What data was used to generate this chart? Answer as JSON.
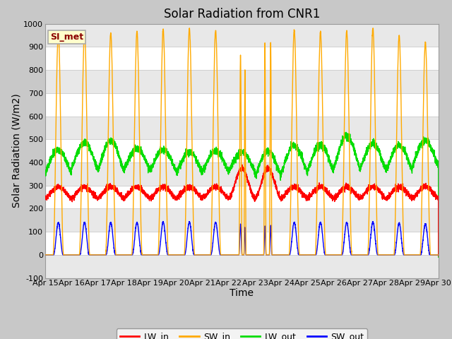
{
  "title": "Solar Radiation from CNR1",
  "xlabel": "Time",
  "ylabel": "Solar Radiation (W/m2)",
  "ylim": [
    -100,
    1000
  ],
  "xlim": [
    0,
    15
  ],
  "legend_label": "SI_met",
  "series": {
    "LW_in": {
      "color": "#ff0000",
      "label": "LW_in"
    },
    "SW_in": {
      "color": "#ffaa00",
      "label": "SW_in"
    },
    "LW_out": {
      "color": "#00dd00",
      "label": "LW_out"
    },
    "SW_out": {
      "color": "#0000ff",
      "label": "SW_out"
    }
  },
  "xtick_labels": [
    "Apr 15",
    "Apr 16",
    "Apr 17",
    "Apr 18",
    "Apr 19",
    "Apr 20",
    "Apr 21",
    "Apr 22",
    "Apr 23",
    "Apr 24",
    "Apr 25",
    "Apr 26",
    "Apr 27",
    "Apr 28",
    "Apr 29",
    "Apr 30"
  ],
  "yticks": [
    -100,
    0,
    100,
    200,
    300,
    400,
    500,
    600,
    700,
    800,
    900,
    1000
  ],
  "fig_bg": "#c8c8c8",
  "plot_bg": "#ffffff",
  "band_color": "#e8e8e8",
  "grid_line_color": "#d0d0d0",
  "title_fontsize": 12,
  "axis_label_fontsize": 10,
  "tick_fontsize": 8,
  "legend_fontsize": 9
}
